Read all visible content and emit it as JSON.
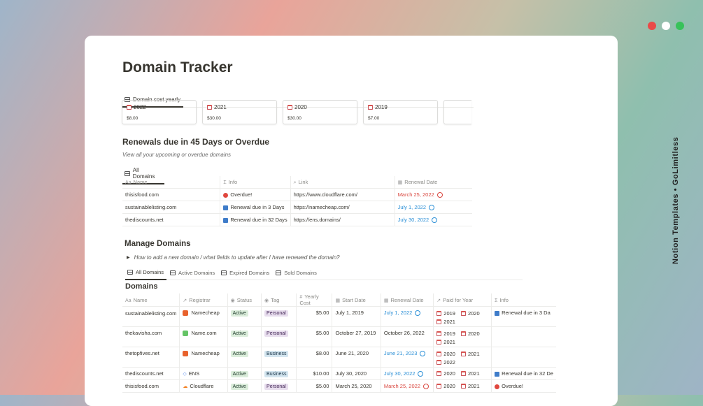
{
  "window": {
    "dot_colors": [
      "#e94a48",
      "#ffffff",
      "#37c25a"
    ],
    "side_caption": "Notion Templates • GoLimitless"
  },
  "page": {
    "title": "Domain Tracker"
  },
  "cost_view": {
    "tab_label": "Domain cost yearly",
    "cards": [
      {
        "year": "2022",
        "amount": "$8.00"
      },
      {
        "year": "2021",
        "amount": "$30.00"
      },
      {
        "year": "2020",
        "amount": "$30.00"
      },
      {
        "year": "2019",
        "amount": "$7.00"
      }
    ]
  },
  "renewals": {
    "title": "Renewals due in 45 Days or Overdue",
    "subtitle": "View all your upcoming or overdue domains",
    "tab_label": "All Domains",
    "columns": [
      "Name",
      "Info",
      "Link",
      "Renewal Date"
    ],
    "rows": [
      {
        "name": "thisisfood.com",
        "info": "Overdue!",
        "link": "https://www.cloudflare.com/",
        "date": "March 25, 2022"
      },
      {
        "name": "sustainablelisting.com",
        "info": "Renewal due in 3 Days",
        "link": "https://namecheap.com/",
        "date": "July 1, 2022"
      },
      {
        "name": "thediscounts.net",
        "info": "Renewal due in 32 Days",
        "link": "https://ens.domains/",
        "date": "July 30, 2022"
      }
    ]
  },
  "manage": {
    "title": "Manage Domains",
    "toggle_text": "How to add a new domain / what fields to update after I have renewed the domain?",
    "tabs": [
      "All Domains",
      "Active Domains",
      "Expired Domains",
      "Sold Domains"
    ],
    "db_title": "Domains",
    "columns": [
      "Name",
      "Registrar",
      "Status",
      "Tag",
      "Yearly Cost",
      "Start Date",
      "Renewal Date",
      "Paid for Year",
      "Info"
    ],
    "rows": [
      {
        "name": "sustainablelisting.com",
        "registrar": "Namecheap",
        "status": "Active",
        "tag": "Personal",
        "cost": "$5.00",
        "start": "July 1, 2019",
        "renewal": "July 1, 2022",
        "years": [
          "2019",
          "2020",
          "2021"
        ],
        "info": "Renewal due in 3 Da"
      },
      {
        "name": "thekavisha.com",
        "registrar": "Name.com",
        "status": "Active",
        "tag": "Personal",
        "cost": "$5.00",
        "start": "October 27, 2019",
        "renewal": "October 26, 2022",
        "years": [
          "2019",
          "2020",
          "2021"
        ],
        "info": ""
      },
      {
        "name": "thetopfives.net",
        "registrar": "Namecheap",
        "status": "Active",
        "tag": "Business",
        "cost": "$8.00",
        "start": "June 21, 2020",
        "renewal": "June 21, 2023",
        "years": [
          "2020",
          "2021",
          "2022"
        ],
        "info": ""
      },
      {
        "name": "thediscounts.net",
        "registrar": "ENS",
        "status": "Active",
        "tag": "Business",
        "cost": "$10.00",
        "start": "July 30, 2020",
        "renewal": "July 30, 2022",
        "years": [
          "2020",
          "2021"
        ],
        "info": "Renewal due in 32 De"
      },
      {
        "name": "thisisfood.com",
        "registrar": "Cloudflare",
        "status": "Active",
        "tag": "Personal",
        "cost": "$5.00",
        "start": "March 25, 2020",
        "renewal": "March 25, 2022",
        "years": [
          "2020",
          "2021"
        ],
        "info": "Overdue!"
      }
    ]
  },
  "colors": {
    "overdue": "#d9473f",
    "upcoming": "#2b8fd6",
    "namecheap": "#e8622d",
    "namecom": "#65c466",
    "ens": "#5b8def",
    "cloudflare": "#f38020"
  }
}
